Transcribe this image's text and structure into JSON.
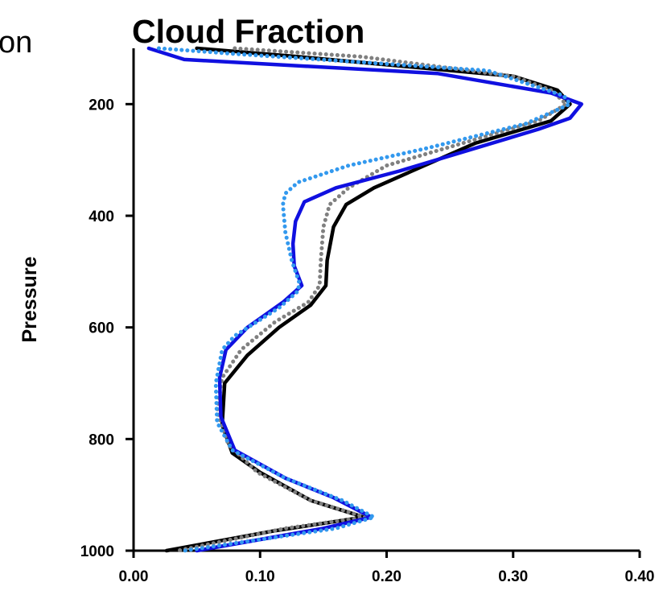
{
  "clipped_title_fragment": "on",
  "chart_data": {
    "type": "line",
    "title": "Cloud Fraction",
    "xlabel": "",
    "ylabel": "Pressure",
    "xlim": [
      0.0,
      0.4
    ],
    "ylim": [
      1000,
      100
    ],
    "y_inverted": true,
    "xticks": [
      0.0,
      0.1,
      0.2,
      0.3,
      0.4
    ],
    "xtick_labels": [
      "0.00",
      "0.10",
      "0.20",
      "0.30",
      "0.40"
    ],
    "yticks": [
      200,
      400,
      600,
      800,
      1000
    ],
    "ytick_labels": [
      "200",
      "400",
      "600",
      "800",
      "1000"
    ],
    "grid": false,
    "legend": "none",
    "series": [
      {
        "color": "#000000",
        "style": "solid",
        "points": [
          [
            0.05,
            100
          ],
          [
            0.13,
            115
          ],
          [
            0.3,
            150
          ],
          [
            0.335,
            175
          ],
          [
            0.345,
            200
          ],
          [
            0.33,
            230
          ],
          [
            0.27,
            270
          ],
          [
            0.22,
            320
          ],
          [
            0.19,
            350
          ],
          [
            0.168,
            380
          ],
          [
            0.158,
            420
          ],
          [
            0.153,
            480
          ],
          [
            0.152,
            525
          ],
          [
            0.14,
            560
          ],
          [
            0.115,
            600
          ],
          [
            0.09,
            650
          ],
          [
            0.072,
            700
          ],
          [
            0.07,
            775
          ],
          [
            0.078,
            825
          ],
          [
            0.1,
            860
          ],
          [
            0.14,
            910
          ],
          [
            0.182,
            940
          ],
          [
            0.11,
            965
          ],
          [
            0.026,
            1000
          ]
        ]
      },
      {
        "color": "#808080",
        "style": "dotted",
        "points": [
          [
            0.08,
            100
          ],
          [
            0.18,
            115
          ],
          [
            0.3,
            150
          ],
          [
            0.33,
            175
          ],
          [
            0.342,
            200
          ],
          [
            0.32,
            230
          ],
          [
            0.26,
            270
          ],
          [
            0.2,
            310
          ],
          [
            0.17,
            350
          ],
          [
            0.155,
            380
          ],
          [
            0.15,
            420
          ],
          [
            0.148,
            480
          ],
          [
            0.147,
            525
          ],
          [
            0.138,
            555
          ],
          [
            0.112,
            590
          ],
          [
            0.085,
            640
          ],
          [
            0.07,
            690
          ],
          [
            0.066,
            750
          ],
          [
            0.075,
            810
          ],
          [
            0.098,
            860
          ],
          [
            0.14,
            910
          ],
          [
            0.183,
            940
          ],
          [
            0.12,
            960
          ],
          [
            0.035,
            1000
          ]
        ]
      },
      {
        "color": "#1010e0",
        "style": "solid",
        "points": [
          [
            0.012,
            100
          ],
          [
            0.04,
            120
          ],
          [
            0.24,
            145
          ],
          [
            0.33,
            180
          ],
          [
            0.354,
            200
          ],
          [
            0.345,
            225
          ],
          [
            0.32,
            245
          ],
          [
            0.21,
            320
          ],
          [
            0.16,
            350
          ],
          [
            0.135,
            375
          ],
          [
            0.128,
            410
          ],
          [
            0.126,
            450
          ],
          [
            0.127,
            490
          ],
          [
            0.133,
            525
          ],
          [
            0.118,
            555
          ],
          [
            0.09,
            600
          ],
          [
            0.073,
            640
          ],
          [
            0.068,
            690
          ],
          [
            0.069,
            760
          ],
          [
            0.08,
            820
          ],
          [
            0.12,
            870
          ],
          [
            0.158,
            905
          ],
          [
            0.188,
            940
          ],
          [
            0.15,
            960
          ],
          [
            0.05,
            1000
          ]
        ]
      },
      {
        "color": "#3399ee",
        "style": "dotted",
        "points": [
          [
            0.02,
            100
          ],
          [
            0.08,
            110
          ],
          [
            0.28,
            140
          ],
          [
            0.34,
            185
          ],
          [
            0.345,
            200
          ],
          [
            0.31,
            235
          ],
          [
            0.23,
            280
          ],
          [
            0.17,
            310
          ],
          [
            0.13,
            340
          ],
          [
            0.12,
            360
          ],
          [
            0.118,
            380
          ],
          [
            0.12,
            430
          ],
          [
            0.125,
            480
          ],
          [
            0.131,
            520
          ],
          [
            0.13,
            535
          ],
          [
            0.115,
            565
          ],
          [
            0.08,
            615
          ],
          [
            0.07,
            640
          ],
          [
            0.065,
            700
          ],
          [
            0.066,
            770
          ],
          [
            0.078,
            820
          ],
          [
            0.12,
            870
          ],
          [
            0.165,
            910
          ],
          [
            0.19,
            940
          ],
          [
            0.16,
            960
          ],
          [
            0.04,
            1000
          ]
        ]
      }
    ]
  }
}
